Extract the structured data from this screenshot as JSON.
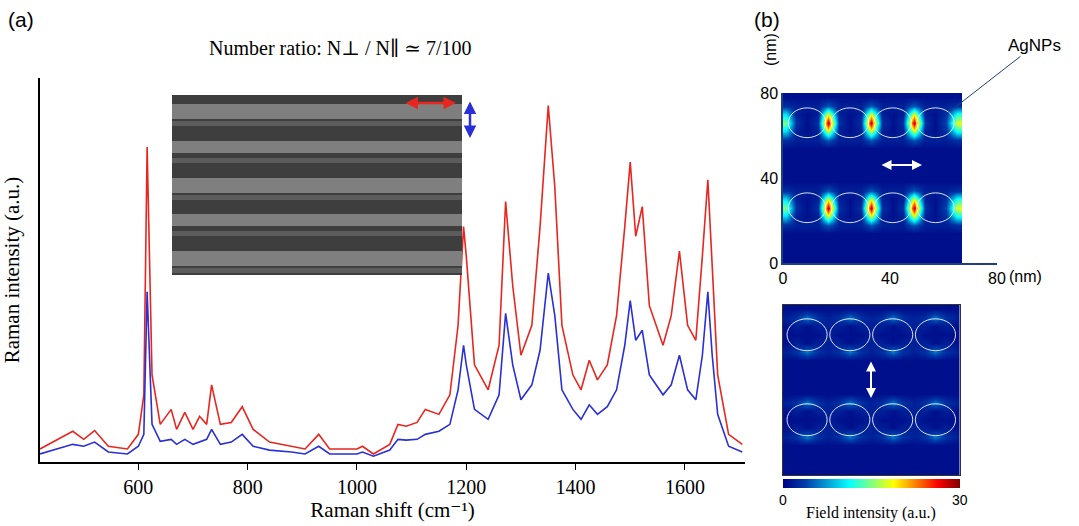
{
  "chart_data": [
    {
      "type": "line",
      "panel": "(a)",
      "title": "Number ratio: N⊥ / N∥ ≃ 7/100",
      "xlabel": "Raman shift (cm⁻¹)",
      "ylabel": "Raman intensity (a.u.)",
      "xlim": [
        420,
        1710
      ],
      "ylim": [
        0,
        100
      ],
      "xticks": [
        600,
        800,
        1000,
        1200,
        1400,
        1600
      ],
      "tick_labels": "x",
      "grid": false,
      "x": [
        420,
        480,
        500,
        520,
        545,
        580,
        600,
        610,
        616,
        625,
        640,
        660,
        670,
        685,
        700,
        712,
        725,
        734,
        750,
        770,
        790,
        810,
        840,
        880,
        905,
        930,
        950,
        1000,
        1010,
        1030,
        1060,
        1075,
        1090,
        1110,
        1125,
        1150,
        1170,
        1185,
        1195,
        1200,
        1215,
        1240,
        1260,
        1272,
        1285,
        1300,
        1320,
        1335,
        1350,
        1362,
        1375,
        1395,
        1410,
        1425,
        1440,
        1458,
        1475,
        1490,
        1500,
        1510,
        1522,
        1535,
        1560,
        1575,
        1590,
        1605,
        1620,
        1632,
        1642,
        1650,
        1660,
        1680,
        1705
      ],
      "series": [
        {
          "color": "#e8261f",
          "values": [
            3.4,
            8.0,
            5.9,
            8.2,
            4.1,
            3.4,
            7.2,
            17.5,
            82.0,
            22.7,
            9.8,
            13.7,
            8.5,
            12.9,
            8.5,
            11.9,
            9.8,
            20.1,
            9.8,
            10.3,
            14.4,
            8.5,
            5.2,
            4.1,
            3.4,
            7.2,
            3.4,
            3.4,
            4.1,
            2.1,
            4.6,
            9.8,
            9.3,
            10.3,
            13.7,
            12.4,
            17.5,
            35.6,
            61.3,
            53.6,
            25.3,
            18.8,
            30.4,
            67.8,
            45.9,
            27.8,
            35.6,
            61.3,
            92.8,
            71.6,
            35.6,
            22.7,
            18.8,
            26.5,
            21.4,
            25.3,
            38.1,
            61.3,
            78.1,
            58.8,
            66.5,
            40.7,
            30.4,
            38.1,
            54.9,
            35.6,
            31.7,
            53.6,
            73.5,
            51.0,
            22.7,
            7.2,
            4.6
          ]
        },
        {
          "color": "#2a2fd6",
          "values": [
            2.1,
            4.6,
            4.1,
            5.2,
            2.6,
            2.1,
            4.1,
            7.2,
            44.3,
            9.8,
            5.4,
            5.9,
            4.6,
            5.9,
            4.6,
            5.2,
            5.9,
            8.5,
            4.6,
            5.2,
            7.2,
            4.1,
            3.1,
            2.6,
            2.1,
            4.1,
            2.1,
            2.1,
            2.6,
            1.5,
            3.1,
            5.9,
            5.7,
            5.9,
            7.2,
            8.0,
            9.8,
            18.8,
            30.4,
            25.3,
            13.7,
            11.1,
            17.5,
            38.7,
            25.3,
            16.2,
            20.1,
            29.1,
            49.2,
            38.1,
            18.8,
            13.7,
            11.1,
            14.9,
            12.4,
            14.4,
            18.8,
            30.4,
            42.0,
            31.7,
            34.3,
            22.7,
            17.5,
            20.1,
            27.8,
            18.8,
            16.2,
            27.8,
            44.3,
            27.8,
            12.4,
            4.1,
            2.6
          ]
        }
      ]
    },
    {
      "type": "heatmap",
      "panel": "(b)",
      "xlabel": "(nm)",
      "ylabel": "(nm)",
      "annotations": [
        "AgNPs"
      ],
      "xlim": [
        0,
        80
      ],
      "ylim": [
        0,
        80
      ],
      "xticks": [
        0,
        40,
        80
      ],
      "yticks": [
        0,
        40,
        80
      ],
      "color_range": [
        0,
        30
      ],
      "particles": {
        "x": [
          9,
          25,
          41,
          57
        ],
        "y": [
          26,
          66
        ],
        "radius": 7
      },
      "x": [
        1,
        5,
        9,
        13,
        17,
        21,
        25,
        29,
        33,
        37,
        41,
        45,
        49,
        53,
        57,
        61,
        65
      ],
      "y": [
        2,
        6,
        10,
        14,
        18,
        22,
        26,
        30,
        34,
        38,
        42,
        46,
        50,
        54,
        58,
        62,
        66,
        70,
        74,
        78
      ],
      "cells": [
        [
          1,
          1,
          1,
          1,
          1,
          1,
          1,
          1,
          1,
          1,
          1,
          1,
          1,
          1,
          1,
          1,
          1
        ],
        [
          1,
          1,
          1,
          1,
          1,
          1,
          1,
          1,
          1,
          1,
          1,
          1,
          1,
          1,
          1,
          1,
          1
        ],
        [
          1,
          1,
          1,
          1,
          1,
          1,
          1,
          1,
          1,
          1,
          1,
          1,
          1,
          1,
          1,
          1,
          1
        ],
        [
          1,
          1,
          1,
          1,
          1,
          1,
          1,
          1,
          1,
          1,
          1,
          1,
          1,
          1,
          1,
          1,
          1
        ],
        [
          3,
          2,
          2,
          2,
          5,
          2,
          2,
          2,
          5,
          2,
          2,
          2,
          5,
          2,
          2,
          2,
          3
        ],
        [
          10,
          2,
          1,
          2,
          18,
          2,
          1,
          2,
          18,
          2,
          1,
          2,
          18,
          2,
          1,
          3,
          12
        ],
        [
          15,
          3,
          1,
          3,
          28,
          3,
          1,
          3,
          28,
          3,
          1,
          3,
          28,
          3,
          1,
          4,
          18
        ],
        [
          10,
          2,
          1,
          2,
          18,
          2,
          1,
          2,
          18,
          2,
          1,
          2,
          18,
          2,
          1,
          3,
          12
        ],
        [
          3,
          2,
          2,
          2,
          5,
          2,
          2,
          2,
          5,
          2,
          2,
          2,
          5,
          2,
          2,
          2,
          3
        ],
        [
          1,
          1,
          1,
          1,
          1,
          1,
          1,
          1,
          1,
          1,
          1,
          1,
          1,
          1,
          1,
          1,
          1
        ],
        [
          1,
          1,
          1,
          1,
          1,
          1,
          1,
          1,
          1,
          1,
          1,
          1,
          1,
          1,
          1,
          1,
          1
        ],
        [
          1,
          1,
          1,
          1,
          1,
          1,
          1,
          1,
          1,
          1,
          1,
          1,
          1,
          1,
          1,
          1,
          1
        ],
        [
          1,
          1,
          1,
          1,
          1,
          1,
          1,
          1,
          1,
          1,
          1,
          1,
          1,
          1,
          1,
          1,
          1
        ],
        [
          1,
          1,
          1,
          1,
          1,
          1,
          1,
          1,
          1,
          1,
          1,
          1,
          1,
          1,
          1,
          1,
          1
        ],
        [
          3,
          2,
          2,
          2,
          5,
          2,
          2,
          2,
          5,
          2,
          2,
          2,
          5,
          2,
          2,
          2,
          3
        ],
        [
          10,
          2,
          1,
          2,
          18,
          2,
          1,
          2,
          18,
          2,
          1,
          2,
          18,
          2,
          1,
          3,
          12
        ],
        [
          15,
          3,
          1,
          3,
          28,
          3,
          1,
          3,
          28,
          3,
          1,
          3,
          28,
          3,
          1,
          4,
          18
        ],
        [
          10,
          2,
          1,
          2,
          18,
          2,
          1,
          2,
          18,
          2,
          1,
          2,
          18,
          2,
          1,
          3,
          12
        ],
        [
          3,
          2,
          2,
          2,
          5,
          2,
          2,
          2,
          5,
          2,
          2,
          2,
          5,
          2,
          2,
          2,
          3
        ],
        [
          1,
          1,
          1,
          1,
          1,
          1,
          1,
          1,
          1,
          1,
          1,
          1,
          1,
          1,
          1,
          1,
          1
        ]
      ]
    },
    {
      "type": "heatmap",
      "tick_labels": false,
      "xlim": [
        0,
        66
      ],
      "ylim": [
        0,
        80
      ],
      "color_range": [
        0,
        30
      ],
      "color_ticks": [
        0,
        30
      ],
      "color_label": "Field intensity (a.u.)",
      "particles": {
        "x": [
          9,
          25,
          41,
          57
        ],
        "y": [
          26,
          66
        ],
        "radius": 7.5
      },
      "x": [
        1,
        5,
        9,
        13,
        17,
        21,
        25,
        29,
        33,
        37,
        41,
        45,
        49,
        53,
        57,
        61,
        65
      ],
      "y": [
        2,
        6,
        10,
        14,
        18,
        22,
        26,
        30,
        34,
        38,
        42,
        46,
        50,
        54,
        58,
        62,
        66,
        70,
        74,
        78
      ],
      "cells": [
        [
          1,
          1,
          1,
          1,
          1,
          1,
          1,
          1,
          1,
          1,
          1,
          1,
          1,
          1,
          1,
          1,
          1
        ],
        [
          1,
          1,
          1,
          1,
          1,
          1,
          1,
          1,
          1,
          1,
          1,
          1,
          1,
          1,
          1,
          1,
          1
        ],
        [
          1,
          1,
          1,
          1,
          1,
          1,
          1,
          1,
          1,
          1,
          1,
          1,
          1,
          1,
          1,
          1,
          1
        ],
        [
          1,
          1,
          1,
          1,
          1,
          1,
          1,
          1,
          1,
          1,
          1,
          1,
          1,
          1,
          1,
          1,
          1
        ],
        [
          2,
          3,
          6,
          3,
          2,
          3,
          6,
          3,
          2,
          3,
          6,
          3,
          2,
          3,
          6,
          3,
          2
        ],
        [
          1,
          2,
          1,
          2,
          2,
          2,
          1,
          2,
          2,
          2,
          1,
          2,
          2,
          2,
          1,
          2,
          1
        ],
        [
          1,
          1,
          1,
          1,
          2,
          1,
          1,
          1,
          2,
          1,
          1,
          1,
          2,
          1,
          1,
          1,
          1
        ],
        [
          1,
          2,
          1,
          2,
          2,
          2,
          1,
          2,
          2,
          2,
          1,
          2,
          2,
          2,
          1,
          2,
          1
        ],
        [
          2,
          3,
          6,
          3,
          2,
          3,
          6,
          3,
          2,
          3,
          6,
          3,
          2,
          3,
          6,
          3,
          2
        ],
        [
          1,
          1,
          1,
          1,
          1,
          1,
          1,
          1,
          1,
          1,
          1,
          1,
          1,
          1,
          1,
          1,
          1
        ],
        [
          1,
          1,
          1,
          1,
          1,
          1,
          1,
          1,
          1,
          1,
          1,
          1,
          1,
          1,
          1,
          1,
          1
        ],
        [
          1,
          1,
          1,
          1,
          1,
          1,
          1,
          1,
          1,
          1,
          1,
          1,
          1,
          1,
          1,
          1,
          1
        ],
        [
          1,
          1,
          1,
          1,
          1,
          1,
          1,
          1,
          1,
          1,
          1,
          1,
          1,
          1,
          1,
          1,
          1
        ],
        [
          1,
          1,
          1,
          1,
          1,
          1,
          1,
          1,
          1,
          1,
          1,
          1,
          1,
          1,
          1,
          1,
          1
        ],
        [
          2,
          3,
          6,
          3,
          2,
          3,
          6,
          3,
          2,
          3,
          6,
          3,
          2,
          3,
          6,
          3,
          2
        ],
        [
          1,
          2,
          1,
          2,
          2,
          2,
          1,
          2,
          2,
          2,
          1,
          2,
          2,
          2,
          1,
          2,
          1
        ],
        [
          1,
          1,
          1,
          1,
          2,
          1,
          1,
          1,
          2,
          1,
          1,
          1,
          2,
          1,
          1,
          1,
          1
        ],
        [
          1,
          2,
          1,
          2,
          2,
          2,
          1,
          2,
          2,
          2,
          1,
          2,
          2,
          2,
          1,
          2,
          1
        ],
        [
          2,
          3,
          6,
          3,
          2,
          3,
          6,
          3,
          2,
          3,
          6,
          3,
          2,
          3,
          6,
          3,
          2
        ],
        [
          1,
          1,
          1,
          1,
          1,
          1,
          1,
          1,
          1,
          1,
          1,
          1,
          1,
          1,
          1,
          1,
          1
        ]
      ]
    }
  ]
}
